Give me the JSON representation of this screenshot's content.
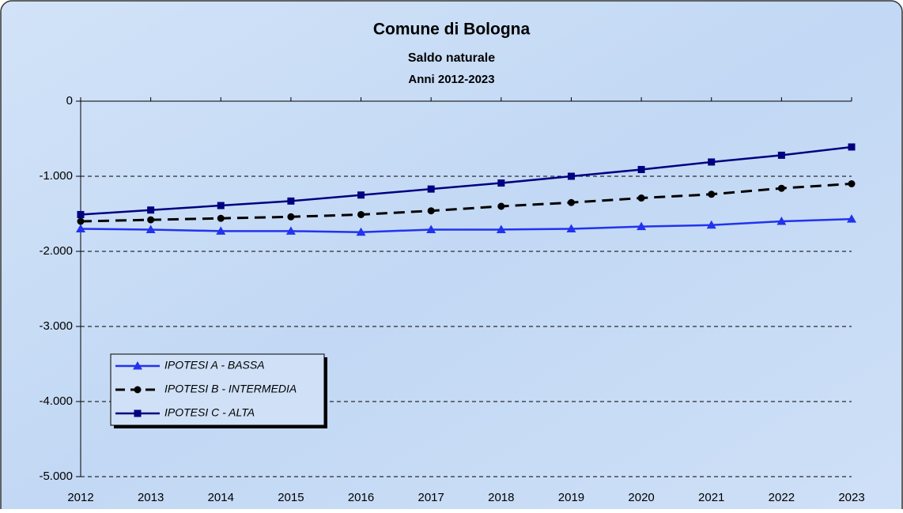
{
  "chart_data": {
    "type": "line",
    "title": "Comune di Bologna",
    "subtitle": [
      "Saldo naturale",
      "Anni 2012-2023"
    ],
    "categories": [
      "2012",
      "2013",
      "2014",
      "2015",
      "2016",
      "2017",
      "2018",
      "2019",
      "2020",
      "2021",
      "2022",
      "2023"
    ],
    "series": [
      {
        "name": "IPOTESI A - BASSA",
        "color": "#2233ee",
        "marker": "triangle",
        "dashed": false,
        "values": [
          -1700,
          -1710,
          -1730,
          -1730,
          -1745,
          -1710,
          -1710,
          -1700,
          -1670,
          -1650,
          -1600,
          -1570
        ]
      },
      {
        "name": "IPOTESI B - INTERMEDIA",
        "color": "#000000",
        "marker": "circle",
        "dashed": true,
        "values": [
          -1600,
          -1580,
          -1560,
          -1540,
          -1510,
          -1460,
          -1400,
          -1350,
          -1290,
          -1240,
          -1160,
          -1100
        ]
      },
      {
        "name": "IPOTESI C - ALTA",
        "color": "#000080",
        "marker": "square",
        "dashed": false,
        "values": [
          -1510,
          -1450,
          -1390,
          -1330,
          -1250,
          -1170,
          -1090,
          -1000,
          -910,
          -810,
          -720,
          -610
        ]
      }
    ],
    "ylim": [
      -5000,
      0
    ],
    "yticks": [
      0,
      {
        "value": -1000,
        "label": "-1.000"
      },
      {
        "value": -2000,
        "label": "-2.000"
      },
      {
        "value": -3000,
        "label": "-3.000"
      },
      {
        "value": -4000,
        "label": "-4.000"
      },
      {
        "value": -5000,
        "label": "-5.000"
      }
    ],
    "grid": true,
    "legend": "lower-left"
  }
}
